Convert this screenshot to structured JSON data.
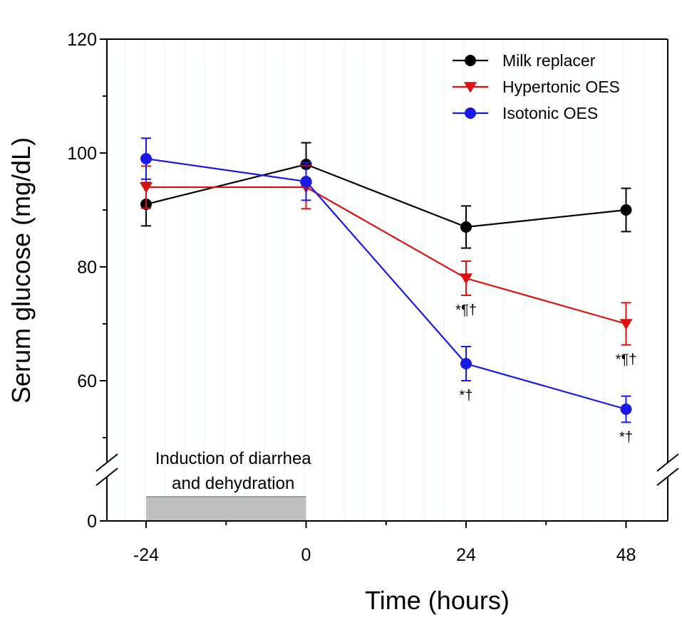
{
  "chart_data": {
    "type": "line",
    "title": "",
    "xlabel": "Time (hours)",
    "ylabel": "Serum glucose (mg/dL)",
    "x": [
      -24,
      0,
      24,
      48
    ],
    "x_tick_labels": [
      "-24",
      "0",
      "24",
      "48"
    ],
    "y_tick_labels": [
      "0",
      "60",
      "80",
      "100",
      "120"
    ],
    "ylim_upper": [
      50,
      120
    ],
    "y_break": "broken axis between 0 and 50",
    "legend_position": "top-right",
    "series": [
      {
        "name": "Milk replacer",
        "color": "#000000",
        "marker": "circle",
        "values": [
          91,
          98,
          87,
          90
        ],
        "errors": [
          3.8,
          3.8,
          3.7,
          3.8
        ]
      },
      {
        "name": "Hypertonic OES",
        "color": "#dd1111",
        "marker": "triangle-down",
        "values": [
          94,
          94,
          78,
          70
        ],
        "errors": [
          3.7,
          3.8,
          3.0,
          3.7
        ]
      },
      {
        "name": "Isotonic OES",
        "color": "#1a1ae6",
        "marker": "circle",
        "values": [
          99,
          95,
          63,
          55
        ],
        "errors": [
          3.6,
          3.3,
          3.0,
          2.3
        ]
      }
    ],
    "annotations": [
      {
        "text": "*¶†",
        "x": 24,
        "series": "Hypertonic OES"
      },
      {
        "text": "*†",
        "x": 24,
        "series": "Isotonic OES"
      },
      {
        "text": "*¶†",
        "x": 48,
        "series": "Hypertonic OES"
      },
      {
        "text": "*†",
        "x": 48,
        "series": "Isotonic OES"
      }
    ],
    "band": {
      "label_line1": "Induction of diarrhea",
      "label_line2": "and dehydration",
      "x_start": -24,
      "x_end": 0,
      "color": "#c0c0c0"
    }
  }
}
